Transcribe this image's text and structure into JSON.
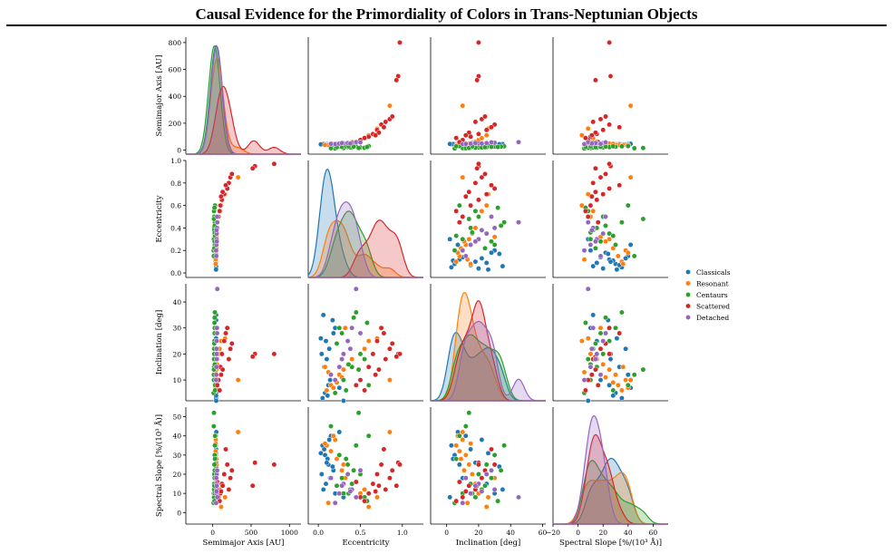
{
  "page_title": "Causal Evidence for the Primordiality of Colors in Trans-Neptunian Objects",
  "chart_data": {
    "type": "scatter",
    "subtype": "pairplot",
    "variables": [
      {
        "key": "a",
        "label": "Semimajor Axis [AU]",
        "lim": [
          -350,
          1150
        ],
        "ticks": [
          0,
          500,
          1000
        ],
        "ylim": [
          -30,
          840
        ],
        "yticks": [
          0,
          200,
          400,
          600,
          800
        ]
      },
      {
        "key": "e",
        "label": "Eccentricity",
        "lim": [
          -0.12,
          1.25
        ],
        "ticks": [
          0.0,
          0.5,
          1.0
        ],
        "ylim": [
          -0.04,
          1.0
        ],
        "yticks": [
          0.0,
          0.2,
          0.4,
          0.6,
          0.8,
          1.0
        ]
      },
      {
        "key": "i",
        "label": "Inclination [deg]",
        "lim": [
          -10,
          62
        ],
        "ticks": [
          0,
          20,
          40,
          60
        ],
        "ylim": [
          2,
          47
        ],
        "yticks": [
          10,
          20,
          30,
          40
        ]
      },
      {
        "key": "s",
        "label": "Spectral Slope [%/(10³ Å)]",
        "lim": [
          -20,
          72
        ],
        "ticks": [
          -20,
          0,
          20,
          40,
          60
        ],
        "ylim": [
          -6,
          55
        ],
        "yticks": [
          0,
          10,
          20,
          30,
          40,
          50
        ]
      }
    ],
    "legend": {
      "placement": "right"
    },
    "series": [
      {
        "name": "Classicals",
        "color": "#1f77b4",
        "a": [
          43,
          44,
          44,
          45,
          43,
          44,
          46,
          45,
          44,
          43,
          44,
          45,
          47,
          44,
          43,
          45,
          44,
          46
        ],
        "e": [
          0.05,
          0.08,
          0.12,
          0.15,
          0.04,
          0.09,
          0.2,
          0.11,
          0.07,
          0.13,
          0.18,
          0.06,
          0.25,
          0.1,
          0.03,
          0.14,
          0.17,
          0.3
        ],
        "i": [
          3,
          5,
          8,
          12,
          20,
          25,
          30,
          4,
          15,
          22,
          28,
          35,
          7,
          18,
          26,
          10,
          33,
          2
        ],
        "s": [
          35,
          30,
          25,
          40,
          20,
          15,
          10,
          28,
          33,
          38,
          22,
          12,
          42,
          26,
          31,
          18,
          24,
          8
        ]
      },
      {
        "name": "Resonant",
        "color": "#ff7f0e",
        "a": [
          39,
          39,
          40,
          39,
          48,
          55,
          62,
          39,
          47,
          39,
          39,
          75,
          89,
          110,
          160,
          330,
          39,
          48
        ],
        "e": [
          0.1,
          0.15,
          0.2,
          0.25,
          0.3,
          0.35,
          0.4,
          0.18,
          0.22,
          0.28,
          0.12,
          0.5,
          0.55,
          0.6,
          0.7,
          0.85,
          0.08,
          0.32
        ],
        "i": [
          6,
          8,
          10,
          12,
          14,
          16,
          18,
          7,
          9,
          11,
          13,
          20,
          22,
          25,
          26,
          10,
          15,
          30
        ],
        "s": [
          35,
          32,
          38,
          30,
          25,
          20,
          15,
          40,
          28,
          22,
          5,
          10,
          12,
          3,
          8,
          42,
          36,
          18
        ]
      },
      {
        "name": "Centaurs",
        "color": "#2ca02c",
        "a": [
          12,
          15,
          18,
          20,
          22,
          25,
          28,
          30,
          14,
          17,
          19,
          24,
          26,
          29,
          16,
          21,
          23,
          27
        ],
        "e": [
          0.2,
          0.3,
          0.4,
          0.5,
          0.35,
          0.25,
          0.45,
          0.6,
          0.15,
          0.55,
          0.38,
          0.28,
          0.42,
          0.33,
          0.48,
          0.22,
          0.58,
          0.36
        ],
        "i": [
          5,
          10,
          15,
          20,
          25,
          30,
          36,
          8,
          12,
          18,
          22,
          28,
          34,
          6,
          14,
          24,
          32,
          16
        ],
        "s": [
          5,
          10,
          15,
          20,
          25,
          30,
          35,
          40,
          45,
          8,
          12,
          18,
          22,
          28,
          52,
          14,
          6,
          10
        ]
      },
      {
        "name": "Scattered",
        "color": "#d62728",
        "a": [
          100,
          120,
          150,
          190,
          210,
          230,
          550,
          800,
          75,
          130,
          170,
          520,
          90,
          110,
          250,
          60
        ],
        "e": [
          0.6,
          0.65,
          0.7,
          0.75,
          0.8,
          0.85,
          0.95,
          0.97,
          0.5,
          0.72,
          0.78,
          0.93,
          0.55,
          0.68,
          0.88,
          0.45
        ],
        "i": [
          15,
          20,
          25,
          30,
          18,
          22,
          20,
          20,
          10,
          14,
          28,
          19,
          6,
          12,
          24,
          8
        ],
        "s": [
          10,
          15,
          20,
          25,
          12,
          18,
          26,
          25,
          8,
          14,
          33,
          14,
          6,
          11,
          22,
          16
        ]
      },
      {
        "name": "Detached",
        "color": "#9467bd",
        "a": [
          45,
          48,
          50,
          52,
          55,
          60,
          47,
          53,
          58,
          49
        ],
        "e": [
          0.2,
          0.25,
          0.3,
          0.35,
          0.4,
          0.45,
          0.15,
          0.28,
          0.5,
          0.38
        ],
        "i": [
          10,
          15,
          20,
          25,
          30,
          45,
          12,
          18,
          28,
          22
        ],
        "s": [
          5,
          10,
          15,
          20,
          12,
          8,
          18,
          14,
          22,
          11
        ]
      }
    ]
  }
}
